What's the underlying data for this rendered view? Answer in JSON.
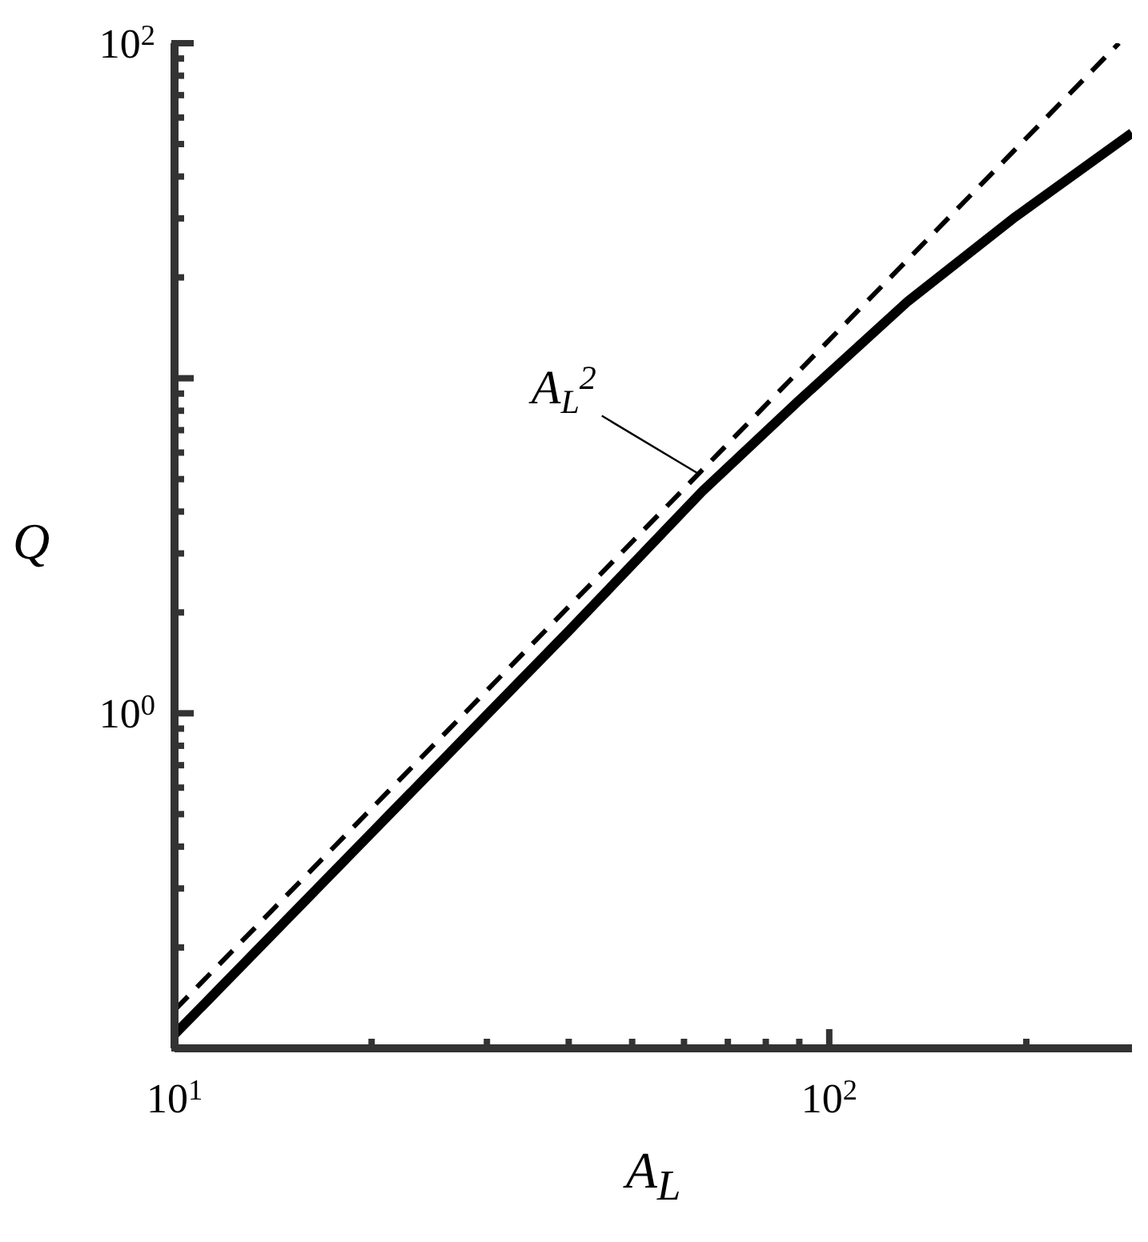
{
  "chart_data": {
    "type": "line",
    "xlabel": "A$_{L}$",
    "ylabel": "Q",
    "log": "xy",
    "xlim": [
      10,
      290
    ],
    "ylim": [
      0.1,
      100
    ],
    "xticks": [
      {
        "value": 10,
        "label": "10$^{1}$"
      },
      {
        "value": 20,
        "label": null
      },
      {
        "value": 30,
        "label": null
      },
      {
        "value": 40,
        "label": null
      },
      {
        "value": 50,
        "label": null
      },
      {
        "value": 60,
        "label": null
      },
      {
        "value": 70,
        "label": null
      },
      {
        "value": 80,
        "label": null
      },
      {
        "value": 90,
        "label": null
      },
      {
        "value": 100,
        "label": "10$^{2}$"
      },
      {
        "value": 200,
        "label": null
      }
    ],
    "yticks": [
      {
        "value": 0.2,
        "label": null
      },
      {
        "value": 0.3,
        "label": null
      },
      {
        "value": 0.4,
        "label": null
      },
      {
        "value": 0.5,
        "label": null
      },
      {
        "value": 0.6,
        "label": null
      },
      {
        "value": 0.7,
        "label": null
      },
      {
        "value": 0.8,
        "label": null
      },
      {
        "value": 0.9,
        "label": null
      },
      {
        "value": 1,
        "label": "10$^{0}$"
      },
      {
        "value": 2,
        "label": null
      },
      {
        "value": 3,
        "label": null
      },
      {
        "value": 4,
        "label": null
      },
      {
        "value": 5,
        "label": null
      },
      {
        "value": 6,
        "label": null
      },
      {
        "value": 7,
        "label": null
      },
      {
        "value": 8,
        "label": null
      },
      {
        "value": 9,
        "label": null
      },
      {
        "value": 10,
        "label": null
      },
      {
        "value": 20,
        "label": null
      },
      {
        "value": 30,
        "label": null
      },
      {
        "value": 40,
        "label": null
      },
      {
        "value": 50,
        "label": null
      },
      {
        "value": 60,
        "label": null
      },
      {
        "value": 70,
        "label": null
      },
      {
        "value": 80,
        "label": null
      },
      {
        "value": 90,
        "label": null
      },
      {
        "value": 100,
        "label": "10$^{2}$"
      }
    ],
    "series": [
      {
        "color": "#000000",
        "line_style": "solid",
        "x": [
          10,
          20,
          40,
          64,
          90,
          132,
          191,
          290
        ],
        "values": [
          0.11,
          0.44,
          1.76,
          4.6,
          8.6,
          17,
          30,
          54
        ]
      },
      {
        "color": "#000000",
        "line_style": "dashed",
        "x": [
          10,
          100,
          277
        ],
        "values": [
          0.13,
          13,
          100
        ]
      }
    ],
    "annotations": [
      {
        "text": "A$_{L}$$^{2}$",
        "x": 63,
        "y": 5.2
      }
    ]
  }
}
